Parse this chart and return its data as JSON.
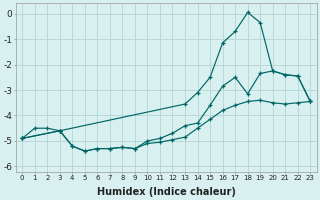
{
  "xlabel": "Humidex (Indice chaleur)",
  "bg_color": "#d9f0f0",
  "grid_color": "#b8d8d8",
  "line_color": "#006666",
  "xlim": [
    -0.5,
    23.5
  ],
  "ylim": [
    -6.2,
    0.4
  ],
  "yticks": [
    0,
    -1,
    -2,
    -3,
    -4,
    -5,
    -6
  ],
  "xticks": [
    0,
    1,
    2,
    3,
    4,
    5,
    6,
    7,
    8,
    9,
    10,
    11,
    12,
    13,
    14,
    15,
    16,
    17,
    18,
    19,
    20,
    21,
    22,
    23
  ],
  "line1_x": [
    0,
    1,
    2,
    3,
    4,
    5,
    6,
    7,
    8,
    9,
    10,
    11,
    12,
    13,
    14,
    15,
    16,
    17,
    18,
    19,
    20,
    21,
    22,
    23
  ],
  "line1_y": [
    -4.9,
    -4.5,
    -4.5,
    -4.6,
    -5.2,
    -5.4,
    -5.3,
    -5.3,
    -5.25,
    -5.3,
    -5.1,
    -5.05,
    -4.95,
    -4.85,
    -4.5,
    -4.15,
    -3.8,
    -3.6,
    -3.45,
    -3.4,
    -3.5,
    -3.55,
    -3.5,
    -3.45
  ],
  "line2_x": [
    0,
    3,
    4,
    5,
    6,
    7,
    8,
    9,
    10,
    11,
    12,
    13,
    14,
    15,
    16,
    17,
    18,
    19,
    20,
    21,
    22,
    23
  ],
  "line2_y": [
    -4.9,
    -4.6,
    -5.2,
    -5.4,
    -5.3,
    -5.3,
    -5.25,
    -5.3,
    -5.0,
    -4.9,
    -4.7,
    -4.4,
    -4.3,
    -3.6,
    -2.85,
    -2.5,
    -3.15,
    -2.35,
    -2.25,
    -2.4,
    -2.45,
    -3.45
  ],
  "line3_x": [
    0,
    3,
    13,
    14,
    15,
    16,
    17,
    18,
    19,
    20,
    21,
    22,
    23
  ],
  "line3_y": [
    -4.9,
    -4.6,
    -3.55,
    -3.1,
    -2.5,
    -1.15,
    -0.7,
    0.05,
    -0.35,
    -2.25,
    -2.4,
    -2.45,
    -3.45
  ]
}
